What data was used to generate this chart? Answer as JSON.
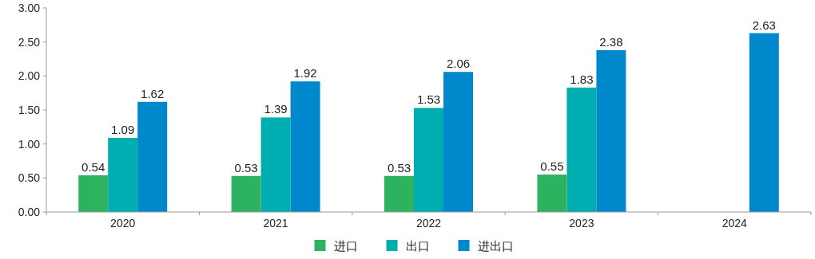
{
  "chart_data": {
    "type": "bar",
    "categories": [
      "2020",
      "2021",
      "2022",
      "2023",
      "2024"
    ],
    "series": [
      {
        "name": "进口",
        "color": "#2db35f",
        "values": [
          0.54,
          0.53,
          0.53,
          0.55,
          null
        ]
      },
      {
        "name": "出口",
        "color": "#00adb0",
        "values": [
          1.09,
          1.39,
          1.53,
          1.83,
          null
        ]
      },
      {
        "name": "进出口",
        "color": "#0088cc",
        "values": [
          1.62,
          1.92,
          2.06,
          2.38,
          2.63
        ]
      }
    ],
    "ylim": [
      0,
      3
    ],
    "yticks": [
      {
        "value": 0,
        "label": "0.00"
      },
      {
        "value": 0.5,
        "label": "0.50"
      },
      {
        "value": 1,
        "label": "1.00"
      },
      {
        "value": 1.5,
        "label": "1.50"
      },
      {
        "value": 2,
        "label": "2.00"
      },
      {
        "value": 2.5,
        "label": "2.50"
      },
      {
        "value": 3,
        "label": "3.00"
      }
    ],
    "data_labels": true,
    "legend": "bottom"
  }
}
